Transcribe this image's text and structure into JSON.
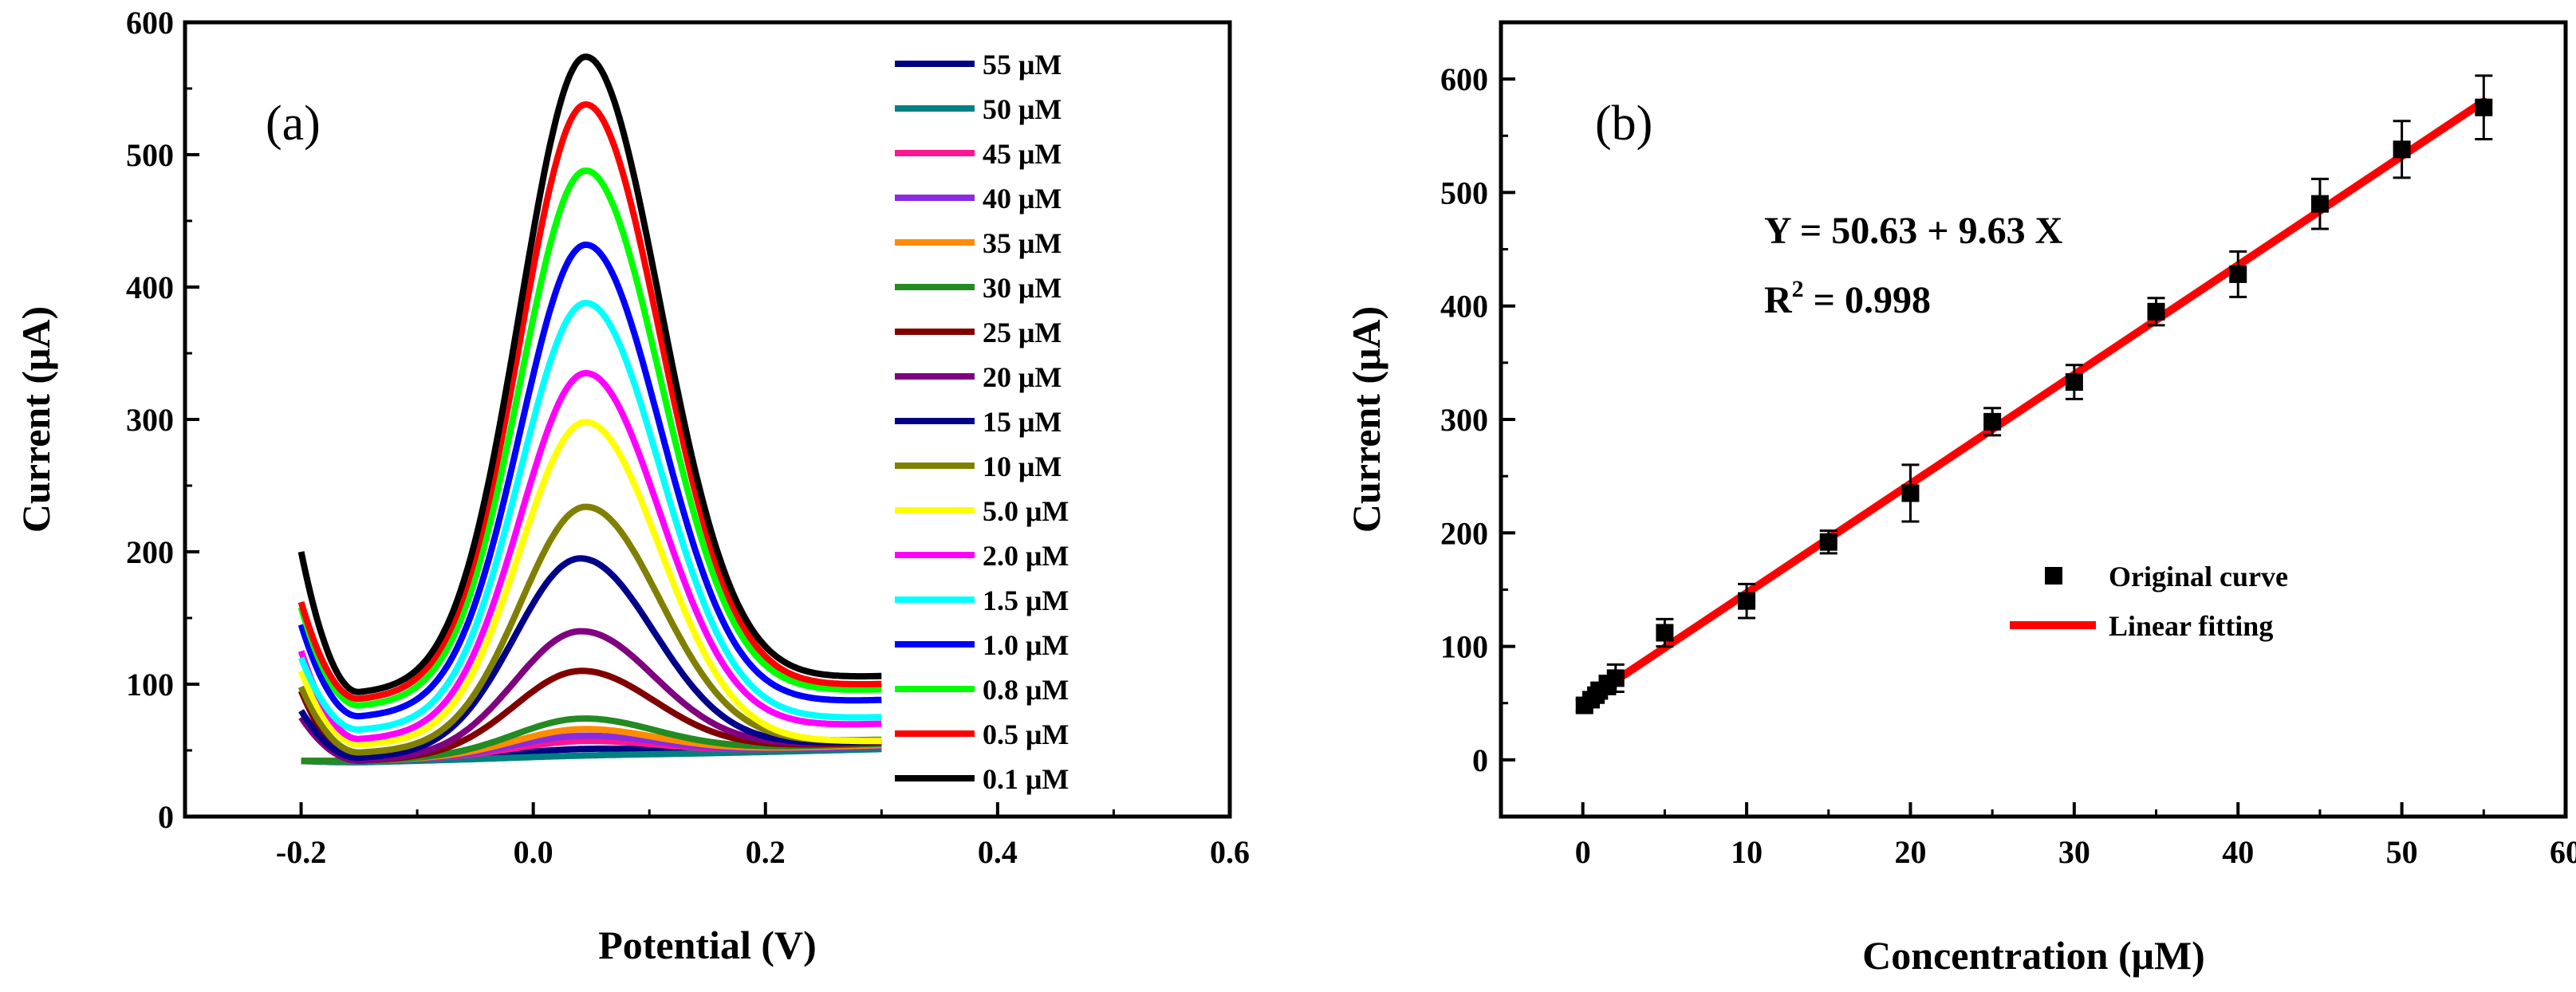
{
  "chart_data": [
    {
      "type": "line",
      "panel_label": "(a)",
      "xlabel": "Potential (V)",
      "ylabel": "Current (μA)",
      "xlim": [
        -0.3,
        0.6
      ],
      "ylim": [
        0,
        600
      ],
      "xticks": [
        -0.2,
        0.0,
        0.2,
        0.4,
        0.6
      ],
      "xtick_labels": [
        "-0.2",
        "0.0",
        "0.2",
        "0.4",
        "0.6"
      ],
      "yticks": [
        0,
        100,
        200,
        300,
        400,
        500,
        600
      ],
      "ytick_labels": [
        "0",
        "100",
        "200",
        "300",
        "400",
        "500",
        "600"
      ],
      "legend_position": "top-right",
      "series": [
        {
          "name": "55 μM",
          "color": "#000080",
          "start": 42,
          "valley": 42,
          "peak": 51,
          "peak_x": 0.04,
          "end": 53
        },
        {
          "name": "50 μM",
          "color": "#008080",
          "start": 42,
          "valley": 41,
          "peak": 46,
          "peak_x": 0.04,
          "end": 51
        },
        {
          "name": "45 μM",
          "color": "#ff1493",
          "start": 42,
          "valley": 42,
          "peak": 57,
          "peak_x": 0.04,
          "end": 53
        },
        {
          "name": "40 μM",
          "color": "#8a2be2",
          "start": 42,
          "valley": 42,
          "peak": 61,
          "peak_x": 0.04,
          "end": 53
        },
        {
          "name": "35 μM",
          "color": "#ff8c00",
          "start": 42,
          "valley": 42,
          "peak": 66,
          "peak_x": 0.04,
          "end": 54
        },
        {
          "name": "30 μM",
          "color": "#228b22",
          "start": 42,
          "valley": 42,
          "peak": 74,
          "peak_x": 0.04,
          "end": 55
        },
        {
          "name": "25 μM",
          "color": "#800000",
          "start": 95,
          "valley": 42,
          "peak": 110,
          "peak_x": 0.04,
          "end": 56
        },
        {
          "name": "20 μM",
          "color": "#800080",
          "start": 75,
          "valley": 42,
          "peak": 140,
          "peak_x": 0.04,
          "end": 57
        },
        {
          "name": "15 μM",
          "color": "#00008b",
          "start": 80,
          "valley": 44,
          "peak": 195,
          "peak_x": 0.04,
          "end": 57
        },
        {
          "name": "10 μM",
          "color": "#808000",
          "start": 98,
          "valley": 48,
          "peak": 234,
          "peak_x": 0.045,
          "end": 58
        },
        {
          "name": "5.0 μM",
          "color": "#ffff00",
          "start": 110,
          "valley": 54,
          "peak": 298,
          "peak_x": 0.045,
          "end": 57
        },
        {
          "name": "2.0 μM",
          "color": "#ff00ff",
          "start": 125,
          "valley": 58,
          "peak": 335,
          "peak_x": 0.045,
          "end": 70
        },
        {
          "name": "1.5 μM",
          "color": "#00ffff",
          "start": 120,
          "valley": 65,
          "peak": 388,
          "peak_x": 0.045,
          "end": 75
        },
        {
          "name": "1.0 μM",
          "color": "#0000ff",
          "start": 145,
          "valley": 75,
          "peak": 432,
          "peak_x": 0.045,
          "end": 88
        },
        {
          "name": "0.8 μM",
          "color": "#00ff00",
          "start": 158,
          "valley": 83,
          "peak": 488,
          "peak_x": 0.045,
          "end": 96
        },
        {
          "name": "0.5 μM",
          "color": "#ff0000",
          "start": 162,
          "valley": 88,
          "peak": 538,
          "peak_x": 0.045,
          "end": 100
        },
        {
          "name": "0.1 μM",
          "color": "#000000",
          "start": 200,
          "valley": 93,
          "peak": 574,
          "peak_x": 0.045,
          "end": 106
        }
      ]
    },
    {
      "type": "scatter",
      "panel_label": "(b)",
      "xlabel": "Concentration (μM)",
      "ylabel": "Current (μA)",
      "xlim": [
        -5,
        60
      ],
      "ylim": [
        -50,
        650
      ],
      "xticks": [
        0,
        10,
        20,
        30,
        40,
        50,
        60
      ],
      "xtick_labels": [
        "0",
        "10",
        "20",
        "30",
        "40",
        "50",
        "60"
      ],
      "yticks": [
        0,
        100,
        200,
        300,
        400,
        500,
        600
      ],
      "ytick_labels": [
        "0",
        "100",
        "200",
        "300",
        "400",
        "500",
        "600"
      ],
      "equation": "Y  =  50.63 + 9.63 X",
      "r2_label": "R",
      "r2_sup": "2",
      "r2_value": " = 0.998",
      "fit": {
        "intercept": 50.63,
        "slope": 9.63,
        "x_range": [
          0,
          55
        ],
        "color": "#ff0000"
      },
      "points": [
        {
          "x": 0.1,
          "y": 48,
          "err": 5
        },
        {
          "x": 0.5,
          "y": 53,
          "err": 6
        },
        {
          "x": 0.8,
          "y": 57,
          "err": 6
        },
        {
          "x": 1.0,
          "y": 61,
          "err": 7
        },
        {
          "x": 1.5,
          "y": 66,
          "err": 8
        },
        {
          "x": 2.0,
          "y": 72,
          "err": 12
        },
        {
          "x": 5.0,
          "y": 112,
          "err": 12
        },
        {
          "x": 10,
          "y": 140,
          "err": 15
        },
        {
          "x": 15,
          "y": 192,
          "err": 10
        },
        {
          "x": 20,
          "y": 235,
          "err": 25
        },
        {
          "x": 25,
          "y": 298,
          "err": 12
        },
        {
          "x": 30,
          "y": 333,
          "err": 15
        },
        {
          "x": 35,
          "y": 395,
          "err": 12
        },
        {
          "x": 40,
          "y": 428,
          "err": 20
        },
        {
          "x": 45,
          "y": 490,
          "err": 22
        },
        {
          "x": 50,
          "y": 538,
          "err": 25
        },
        {
          "x": 55,
          "y": 575,
          "err": 28
        }
      ],
      "legend": [
        {
          "label": "Original curve",
          "kind": "marker",
          "color": "#000000"
        },
        {
          "label": "Linear fitting",
          "kind": "line",
          "color": "#ff0000"
        }
      ]
    }
  ]
}
